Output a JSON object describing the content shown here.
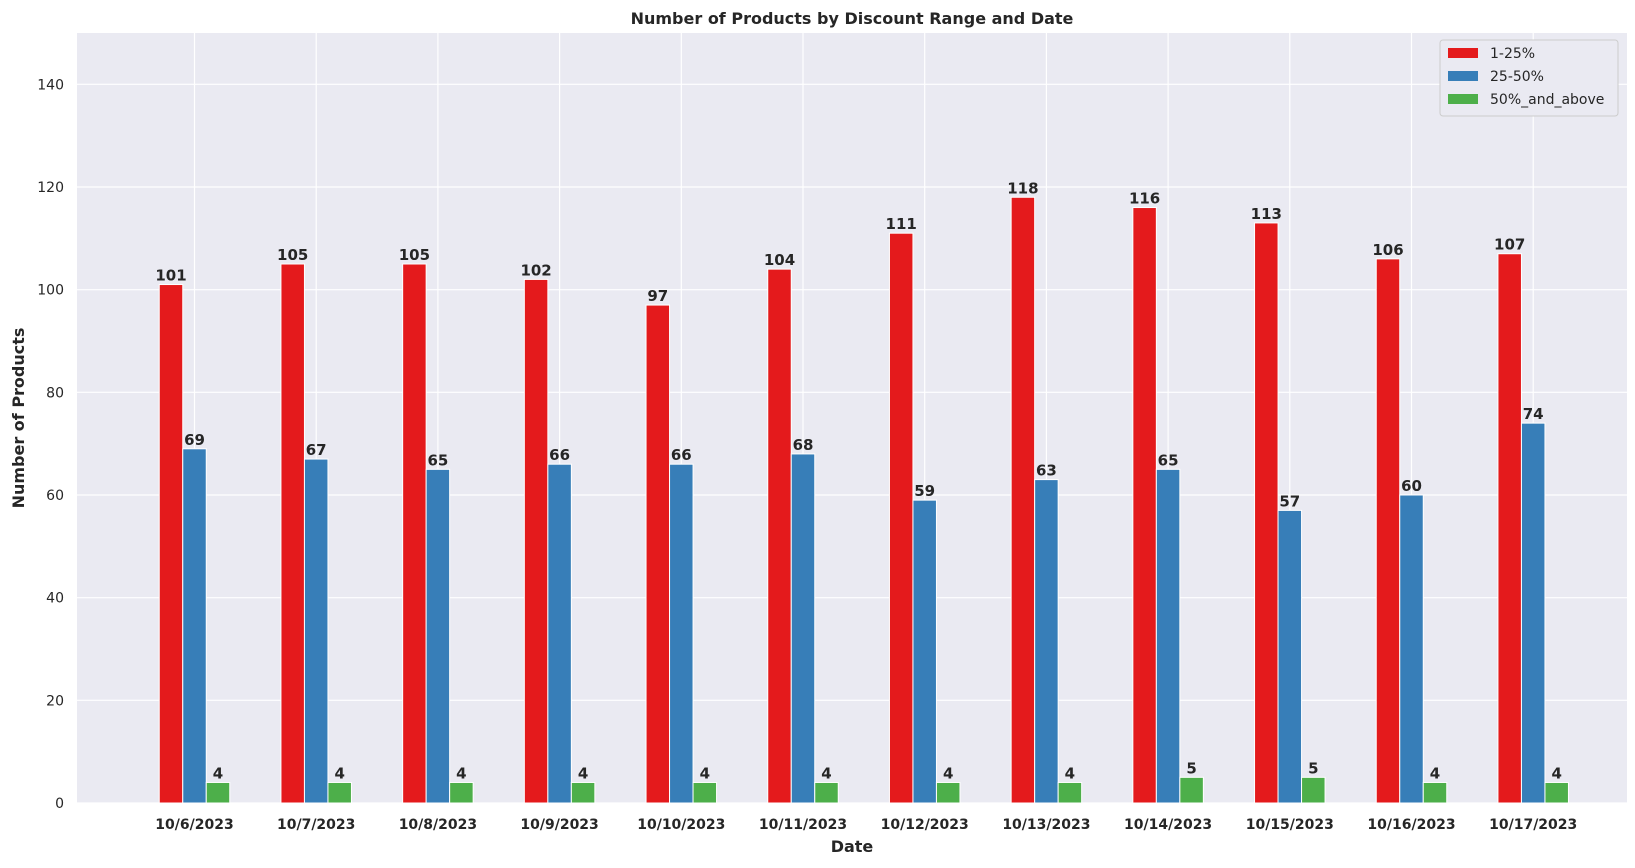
{
  "chart_data": {
    "type": "bar",
    "title": "Number of Products by Discount Range and Date",
    "xlabel": "Date",
    "ylabel": "Number of Products",
    "ylim": [
      0,
      150
    ],
    "yticks": [
      "0",
      "20",
      "40",
      "60",
      "80",
      "100",
      "120",
      "140"
    ],
    "categories": [
      "10/6/2023",
      "10/7/2023",
      "10/8/2023",
      "10/9/2023",
      "10/10/2023",
      "10/11/2023",
      "10/12/2023",
      "10/13/2023",
      "10/14/2023",
      "10/15/2023",
      "10/16/2023",
      "10/17/2023"
    ],
    "series": [
      {
        "name": "1-25%",
        "color": "#e41a1c",
        "values": [
          101,
          105,
          105,
          102,
          97,
          104,
          111,
          118,
          116,
          113,
          106,
          107
        ]
      },
      {
        "name": "25-50%",
        "color": "#377eb8",
        "values": [
          69,
          67,
          65,
          66,
          66,
          68,
          59,
          63,
          65,
          57,
          60,
          74
        ]
      },
      {
        "name": "50%_and_above",
        "color": "#4daf4a",
        "values": [
          4,
          4,
          4,
          4,
          4,
          4,
          4,
          4,
          5,
          5,
          4,
          4
        ]
      }
    ],
    "grid": true,
    "legend_position": "top-right",
    "background_color": "#eaeaf2"
  }
}
